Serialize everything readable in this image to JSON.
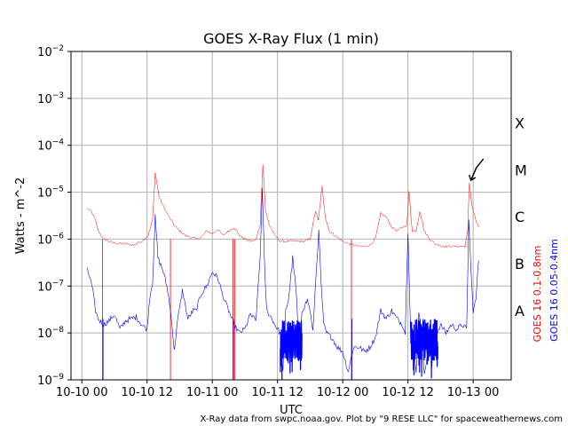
{
  "chart_data": {
    "type": "line",
    "title": "GOES X-Ray Flux (1 min)",
    "xlabel": "UTC",
    "ylabel": "Watts - m^-2",
    "y_scale": "log",
    "ylim": [
      1e-09,
      0.01
    ],
    "xlim": [
      "2023-10-09 22:00",
      "2023-10-13 09:00"
    ],
    "grid": true,
    "y_ticks": [
      {
        "value": 1e-09,
        "base": "10",
        "exp": "−9"
      },
      {
        "value": 1e-08,
        "base": "10",
        "exp": "−8"
      },
      {
        "value": 1e-07,
        "base": "10",
        "exp": "−7"
      },
      {
        "value": 1e-06,
        "base": "10",
        "exp": "−6"
      },
      {
        "value": 1e-05,
        "base": "10",
        "exp": "−5"
      },
      {
        "value": 0.0001,
        "base": "10",
        "exp": "−4"
      },
      {
        "value": 0.001,
        "base": "10",
        "exp": "−3"
      },
      {
        "value": 0.01,
        "base": "10",
        "exp": "−2"
      }
    ],
    "x_ticks": [
      {
        "label": "10-10 00",
        "hours": 2
      },
      {
        "label": "10-10 12",
        "hours": 14
      },
      {
        "label": "10-11 00",
        "hours": 26
      },
      {
        "label": "10-11 12",
        "hours": 38
      },
      {
        "label": "10-12 00",
        "hours": 50
      },
      {
        "label": "10-12 12",
        "hours": 62
      },
      {
        "label": "10-13 00",
        "hours": 74
      }
    ],
    "flare_classes": [
      {
        "label": "X",
        "value": 0.0003
      },
      {
        "label": "M",
        "value": 3e-05
      },
      {
        "label": "C",
        "value": 3e-06
      },
      {
        "label": "B",
        "value": 3e-07
      },
      {
        "label": "A",
        "value": 3e-08
      }
    ],
    "series": [
      {
        "name": "GOES 16 0.1-0.8nm",
        "color": "#ff0000",
        "points": [
          [
            3.0,
            4.5e-06
          ],
          [
            3.8,
            3.8e-06
          ],
          [
            4.5,
            2.5e-06
          ],
          [
            5.0,
            1.5e-06
          ],
          [
            6.0,
            1e-06
          ],
          [
            7.0,
            9e-07
          ],
          [
            8.5,
            8e-07
          ],
          [
            10.0,
            8e-07
          ],
          [
            11.5,
            7.5e-07
          ],
          [
            13.0,
            9e-07
          ],
          [
            14.2,
            1.2e-06
          ],
          [
            15.0,
            2.5e-06
          ],
          [
            15.5,
            2.6e-05
          ],
          [
            16.2,
            8e-06
          ],
          [
            17.0,
            5e-06
          ],
          [
            18.0,
            3e-06
          ],
          [
            19.0,
            2e-06
          ],
          [
            20.0,
            1.5e-06
          ],
          [
            21.0,
            1.2e-06
          ],
          [
            22.0,
            1.1e-06
          ],
          [
            23.0,
            1e-06
          ],
          [
            24.0,
            1.1e-06
          ],
          [
            25.0,
            1.5e-06
          ],
          [
            26.0,
            1.3e-06
          ],
          [
            27.0,
            1.6e-06
          ],
          [
            28.0,
            1.2e-06
          ],
          [
            29.0,
            1.5e-06
          ],
          [
            30.0,
            1.8e-06
          ],
          [
            31.0,
            1.2e-06
          ],
          [
            32.0,
            1e-06
          ],
          [
            33.0,
            9e-07
          ],
          [
            34.0,
            9.5e-07
          ],
          [
            34.8,
            2e-06
          ],
          [
            35.3,
            4e-05
          ],
          [
            35.8,
            4e-06
          ],
          [
            36.5,
            2e-06
          ],
          [
            37.5,
            1.2e-06
          ],
          [
            38.5,
            9e-07
          ],
          [
            40.0,
            9e-07
          ],
          [
            41.5,
            9e-07
          ],
          [
            43.0,
            9e-07
          ],
          [
            44.0,
            1e-06
          ],
          [
            45.0,
            4e-06
          ],
          [
            45.5,
            2.5e-06
          ],
          [
            46.2,
            1.3e-05
          ],
          [
            46.8,
            3e-06
          ],
          [
            47.5,
            1.5e-06
          ],
          [
            49.0,
            1.1e-06
          ],
          [
            50.0,
            9e-07
          ],
          [
            51.0,
            8e-07
          ],
          [
            52.0,
            7.5e-07
          ],
          [
            53.0,
            7e-07
          ],
          [
            54.0,
            7e-07
          ],
          [
            55.0,
            7.5e-07
          ],
          [
            56.0,
            1e-06
          ],
          [
            57.0,
            3.5e-06
          ],
          [
            58.0,
            3e-06
          ],
          [
            59.0,
            1.8e-06
          ],
          [
            60.0,
            1.5e-06
          ],
          [
            61.0,
            1.8e-06
          ],
          [
            61.8,
            2e-06
          ],
          [
            62.2,
            1e-05
          ],
          [
            62.8,
            1.5e-06
          ],
          [
            63.5,
            1.5e-06
          ],
          [
            64.2,
            4e-06
          ],
          [
            65.0,
            1.5e-06
          ],
          [
            66.0,
            1e-06
          ],
          [
            67.0,
            8e-07
          ],
          [
            68.5,
            7e-07
          ],
          [
            70.0,
            7e-07
          ],
          [
            71.5,
            7e-07
          ],
          [
            72.5,
            7e-07
          ],
          [
            73.0,
            1.5e-06
          ],
          [
            73.3,
            1.6e-05
          ],
          [
            73.8,
            5e-06
          ],
          [
            74.5,
            2.5e-06
          ],
          [
            75.0,
            1.8e-06
          ]
        ],
        "dropouts": [
          [
            5.8,
            1e-09
          ],
          [
            18.3,
            1e-09
          ],
          [
            29.8,
            1e-09
          ],
          [
            30.1,
            1e-09
          ],
          [
            51.6,
            1e-09
          ]
        ]
      },
      {
        "name": "GOES 16 0.05-0.4nm",
        "color": "#0000ff",
        "points": [
          [
            3.0,
            2.2e-07
          ],
          [
            3.5,
            1.5e-07
          ],
          [
            4.0,
            8e-08
          ],
          [
            4.5,
            3e-08
          ],
          [
            5.0,
            2e-08
          ],
          [
            6.0,
            1.5e-08
          ],
          [
            7.0,
            1.8e-08
          ],
          [
            8.0,
            2.5e-08
          ],
          [
            9.0,
            1.2e-08
          ],
          [
            10.0,
            1.8e-08
          ],
          [
            11.0,
            2e-08
          ],
          [
            12.0,
            2.2e-08
          ],
          [
            13.0,
            1.5e-08
          ],
          [
            14.0,
            1.2e-08
          ],
          [
            14.5,
            6e-08
          ],
          [
            15.0,
            1.2e-07
          ],
          [
            15.5,
            3e-06
          ],
          [
            16.0,
            4e-07
          ],
          [
            17.0,
            2e-07
          ],
          [
            17.8,
            8e-08
          ],
          [
            18.5,
            2e-08
          ],
          [
            19.0,
            4e-09
          ],
          [
            19.5,
            1.5e-08
          ],
          [
            20.5,
            8e-08
          ],
          [
            21.5,
            2e-08
          ],
          [
            22.5,
            3e-08
          ],
          [
            23.0,
            3e-08
          ],
          [
            24.0,
            7e-08
          ],
          [
            25.0,
            1e-07
          ],
          [
            26.0,
            2e-07
          ],
          [
            27.0,
            1.5e-07
          ],
          [
            28.0,
            6e-08
          ],
          [
            29.0,
            3e-08
          ],
          [
            30.0,
            1.5e-08
          ],
          [
            31.0,
            1e-08
          ],
          [
            32.0,
            1.2e-08
          ],
          [
            33.0,
            2.5e-08
          ],
          [
            34.0,
            1.8e-08
          ],
          [
            34.8,
            4e-07
          ],
          [
            35.2,
            1.2e-05
          ],
          [
            35.6,
            3e-07
          ],
          [
            36.0,
            3e-08
          ],
          [
            37.0,
            2e-08
          ],
          [
            37.5,
            1.5e-08
          ],
          [
            38.5,
            1e-08
          ],
          [
            39.0,
            1.5e-09
          ],
          [
            39.5,
            3e-08
          ],
          [
            40.0,
            5e-08
          ],
          [
            40.8,
            4e-07
          ],
          [
            41.5,
            6e-08
          ],
          [
            42.0,
            3e-09
          ],
          [
            42.5,
            3e-08
          ],
          [
            43.5,
            5e-08
          ],
          [
            44.0,
            3e-08
          ],
          [
            44.5,
            1e-08
          ],
          [
            45.2,
            3e-07
          ],
          [
            45.6,
            1.4e-06
          ],
          [
            46.0,
            1.2e-07
          ],
          [
            46.5,
            1.5e-08
          ],
          [
            47.0,
            1e-08
          ],
          [
            48.0,
            8e-09
          ],
          [
            49.0,
            5e-09
          ],
          [
            50.0,
            4e-09
          ],
          [
            51.0,
            1.5e-09
          ],
          [
            52.0,
            5e-09
          ],
          [
            53.0,
            5e-09
          ],
          [
            54.0,
            4e-09
          ],
          [
            55.0,
            5e-09
          ],
          [
            56.0,
            8e-09
          ],
          [
            57.0,
            3e-08
          ],
          [
            57.5,
            2.5e-08
          ],
          [
            58.0,
            2e-08
          ],
          [
            59.0,
            3e-08
          ],
          [
            60.0,
            2e-08
          ],
          [
            61.0,
            1.5e-08
          ],
          [
            61.5,
            1e-08
          ],
          [
            62.0,
            1.5e-06
          ],
          [
            62.5,
            1e-08
          ],
          [
            63.0,
            5e-09
          ],
          [
            63.5,
            1.5e-09
          ],
          [
            64.0,
            3e-08
          ],
          [
            64.5,
            1e-08
          ],
          [
            65.0,
            1.5e-09
          ],
          [
            66.0,
            5e-09
          ],
          [
            67.0,
            8e-09
          ],
          [
            68.0,
            1.5e-08
          ],
          [
            69.0,
            1e-08
          ],
          [
            70.0,
            1.5e-08
          ],
          [
            71.0,
            1.2e-08
          ],
          [
            72.0,
            1.5e-08
          ],
          [
            72.8,
            1.2e-08
          ],
          [
            73.2,
            2.5e-06
          ],
          [
            73.6,
            2e-07
          ],
          [
            74.0,
            3e-08
          ],
          [
            74.5,
            5e-08
          ],
          [
            75.0,
            3.5e-07
          ]
        ],
        "dropouts": [
          [
            5.9,
            1e-09
          ],
          [
            29.9,
            1e-09
          ],
          [
            51.7,
            1e-09
          ]
        ],
        "noisy_ranges": [
          [
            38.5,
            42.5
          ],
          [
            62.5,
            67.5
          ]
        ]
      }
    ],
    "annotation": {
      "type": "arrow",
      "x": 73.6,
      "y": 1.8e-05
    }
  },
  "footer": "X-Ray data from swpc.noaa.gov. Plot by \"9 RESE LLC\" for spaceweathernews.com"
}
